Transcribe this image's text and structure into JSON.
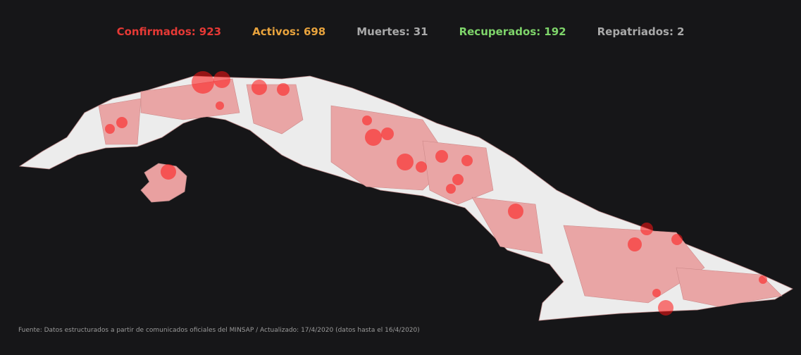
{
  "header": {
    "stats": [
      {
        "label": "Confirmados:",
        "value": 923,
        "color": "#e53935"
      },
      {
        "label": "Activos:",
        "value": 698,
        "color": "#e8a33d"
      },
      {
        "label": "Muertes:",
        "value": 31,
        "color": "#a9a9a9"
      },
      {
        "label": "Recuperados:",
        "value": 192,
        "color": "#7ed46a"
      },
      {
        "label": "Repatriados:",
        "value": 2,
        "color": "#a9a9a9"
      }
    ]
  },
  "footer": {
    "source": "Fuente: Datos estructurados a partir de comunicados oficiales del MINSAP / Actualizado: 17/4/2020 (datos hasta el 16/4/2020)"
  }
}
